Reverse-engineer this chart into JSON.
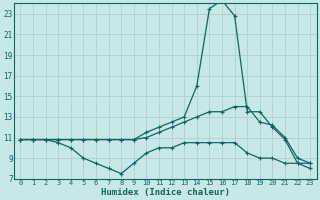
{
  "xlabel": "Humidex (Indice chaleur)",
  "bg_color": "#c5e8e8",
  "grid_color": "#b0d0d0",
  "line_color": "#1a6060",
  "xlim": [
    -0.5,
    23.5
  ],
  "ylim": [
    7,
    24
  ],
  "yticks": [
    7,
    9,
    11,
    13,
    15,
    17,
    19,
    21,
    23
  ],
  "xticks": [
    0,
    1,
    2,
    3,
    4,
    5,
    6,
    7,
    8,
    9,
    10,
    11,
    12,
    13,
    14,
    15,
    16,
    17,
    18,
    19,
    20,
    21,
    22,
    23
  ],
  "series": {
    "line1_x": [
      0,
      1,
      2,
      3,
      4,
      5,
      6,
      7,
      8,
      9,
      10,
      11,
      12,
      13,
      14,
      15,
      16,
      17,
      18,
      19,
      20,
      21,
      22,
      23
    ],
    "line1_y": [
      10.8,
      10.8,
      10.8,
      10.8,
      10.8,
      10.8,
      10.8,
      10.8,
      10.8,
      10.8,
      11.5,
      12.0,
      12.5,
      13.0,
      16.0,
      23.5,
      24.3,
      22.8,
      13.5,
      13.5,
      12.0,
      10.8,
      8.5,
      8.5
    ],
    "line2_x": [
      0,
      1,
      2,
      3,
      4,
      5,
      6,
      7,
      8,
      9,
      10,
      11,
      12,
      13,
      14,
      15,
      16,
      17,
      18,
      19,
      20,
      21,
      22,
      23
    ],
    "line2_y": [
      10.8,
      10.8,
      10.8,
      10.5,
      10.0,
      9.0,
      8.5,
      8.0,
      7.5,
      8.5,
      9.5,
      10.0,
      10.0,
      10.5,
      10.5,
      10.5,
      10.5,
      10.5,
      9.5,
      9.0,
      9.0,
      8.5,
      8.5,
      8.0
    ],
    "line3_x": [
      0,
      1,
      2,
      3,
      4,
      5,
      6,
      7,
      8,
      9,
      10,
      11,
      12,
      13,
      14,
      15,
      16,
      17,
      18,
      19,
      20,
      21,
      22,
      23
    ],
    "line3_y": [
      10.8,
      10.8,
      10.8,
      10.8,
      10.8,
      10.8,
      10.8,
      10.8,
      10.8,
      10.8,
      11.0,
      11.5,
      12.0,
      12.5,
      13.0,
      13.5,
      13.5,
      14.0,
      14.0,
      12.5,
      12.2,
      11.0,
      9.0,
      8.5
    ]
  }
}
